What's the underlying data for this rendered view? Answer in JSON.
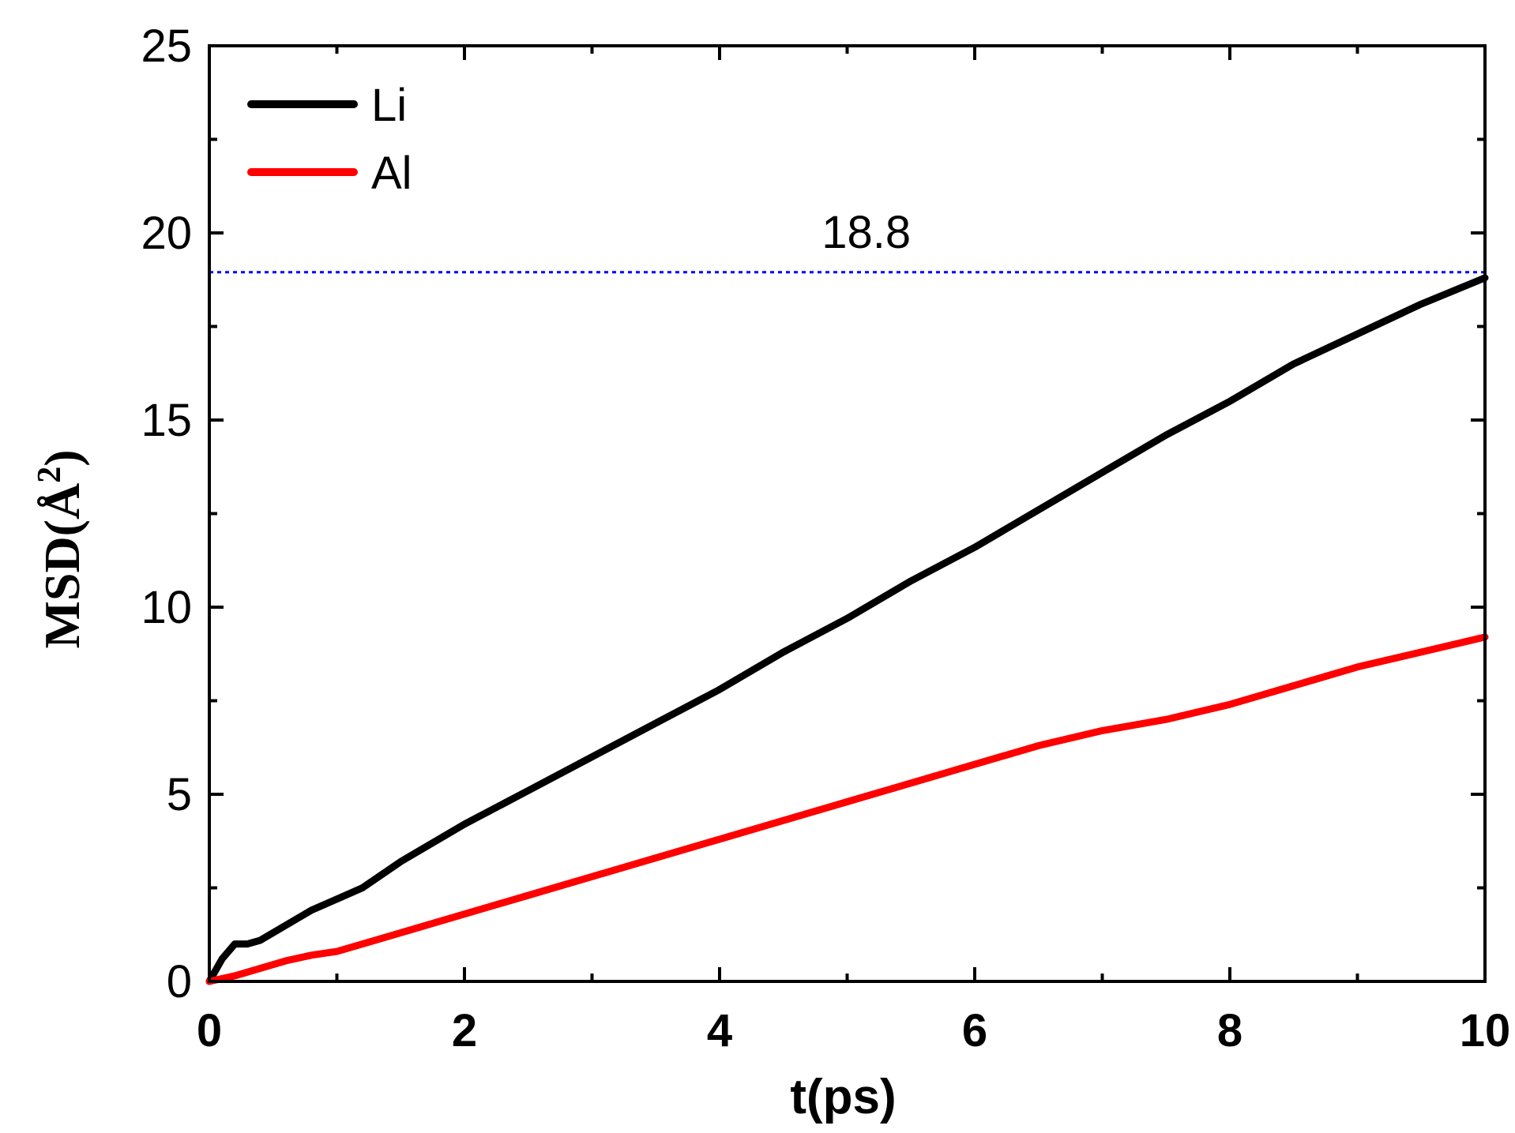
{
  "chart_data": {
    "type": "line",
    "title": "",
    "xlabel": "t(ps)",
    "ylabel": "MSD(Å²)",
    "ylabel_parts": {
      "base": "MSD(",
      "unit": "Å",
      "sup": "2",
      "close": ")"
    },
    "xlim": [
      0,
      10
    ],
    "ylim": [
      0,
      25
    ],
    "x_ticks": [
      0,
      2,
      4,
      6,
      8,
      10
    ],
    "x_tick_labels": [
      "0",
      "2",
      "4",
      "6",
      "8",
      "10"
    ],
    "y_ticks": [
      0,
      5,
      10,
      15,
      20,
      25
    ],
    "y_tick_labels": [
      "0",
      "5",
      "10",
      "15",
      "20",
      "25"
    ],
    "grid": false,
    "legend_position": "top-left",
    "series": [
      {
        "name": "Li",
        "color": "#000000",
        "x": [
          0,
          0.1,
          0.2,
          0.3,
          0.4,
          0.6,
          0.8,
          1.0,
          1.2,
          1.5,
          2.0,
          2.5,
          3.0,
          3.5,
          4.0,
          4.5,
          5.0,
          5.5,
          6.0,
          6.5,
          7.0,
          7.5,
          8.0,
          8.5,
          9.0,
          9.5,
          10.0
        ],
        "y": [
          0,
          0.6,
          1.0,
          1.0,
          1.1,
          1.5,
          1.9,
          2.2,
          2.5,
          3.2,
          4.2,
          5.1,
          6.0,
          6.9,
          7.8,
          8.8,
          9.7,
          10.7,
          11.6,
          12.6,
          13.6,
          14.6,
          15.5,
          16.5,
          17.3,
          18.1,
          18.8
        ]
      },
      {
        "name": "Al",
        "color": "#ff0000",
        "x": [
          0,
          0.2,
          0.4,
          0.6,
          0.8,
          1.0,
          1.5,
          2.0,
          2.5,
          3.0,
          3.5,
          4.0,
          4.5,
          5.0,
          5.5,
          6.0,
          6.5,
          7.0,
          7.5,
          8.0,
          8.5,
          9.0,
          9.5,
          10.0
        ],
        "y": [
          0,
          0.15,
          0.35,
          0.55,
          0.7,
          0.8,
          1.3,
          1.8,
          2.3,
          2.8,
          3.3,
          3.8,
          4.3,
          4.8,
          5.3,
          5.8,
          6.3,
          6.7,
          7.0,
          7.4,
          7.9,
          8.4,
          8.8,
          9.2
        ]
      }
    ],
    "reference_line": {
      "y": 18.95,
      "color": "#0000ff",
      "style": "dotted"
    },
    "annotations": [
      {
        "text": "18.8",
        "x": 4.8,
        "y": 19.6
      }
    ]
  }
}
